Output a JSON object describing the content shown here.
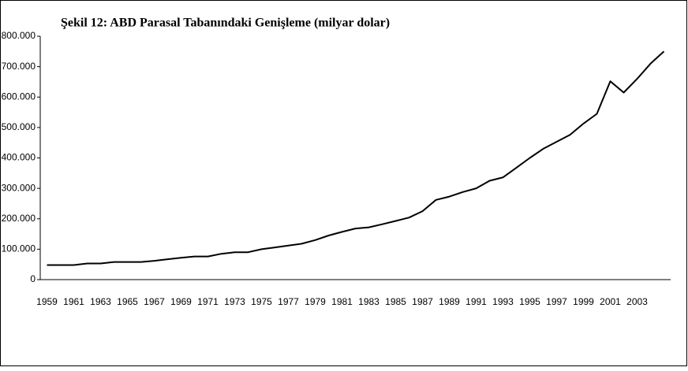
{
  "chart_data": {
    "type": "line",
    "title": "Şekil 12: ABD Parasal Tabanındaki Genişleme (milyar dolar)",
    "categories": [
      "1959",
      null,
      "1961",
      null,
      "1963",
      null,
      "1965",
      null,
      "1967",
      null,
      "1969",
      null,
      "1971",
      null,
      "1973",
      null,
      "1975",
      null,
      "1977",
      null,
      "1979",
      null,
      "1981",
      null,
      "1983",
      null,
      "1985",
      null,
      "1987",
      null,
      "1989",
      null,
      "1991",
      null,
      "1993",
      null,
      "1995",
      null,
      "1997",
      null,
      "1999",
      null,
      "2001",
      null,
      "2003",
      null,
      null
    ],
    "series": [
      {
        "name": null,
        "color": "#000000",
        "values": [
          48000,
          48000,
          48000,
          53000,
          53000,
          58000,
          58000,
          58000,
          62000,
          67000,
          72000,
          76000,
          76000,
          85000,
          90000,
          90000,
          100000,
          106000,
          112000,
          118000,
          130000,
          145000,
          157000,
          168000,
          172000,
          182000,
          193000,
          204000,
          225000,
          262000,
          273000,
          288000,
          300000,
          325000,
          336000,
          368000,
          400000,
          430000,
          453000,
          476000,
          513000,
          545000,
          652000,
          615000,
          660000,
          710000,
          750000
        ]
      }
    ],
    "ylim": [
      0,
      800000
    ],
    "yticks": [
      0,
      {
        "value": 100000,
        "label": "100.000"
      },
      {
        "value": 200000,
        "label": "200.000"
      },
      {
        "value": 300000,
        "label": "300.000"
      },
      {
        "value": 400000,
        "label": "400.000"
      },
      {
        "value": 500000,
        "label": "500.000"
      },
      {
        "value": 600000,
        "label": "600.000"
      },
      {
        "value": 700000,
        "label": "700.000"
      },
      {
        "value": 800000,
        "label": "800.000"
      }
    ],
    "grid": false
  }
}
